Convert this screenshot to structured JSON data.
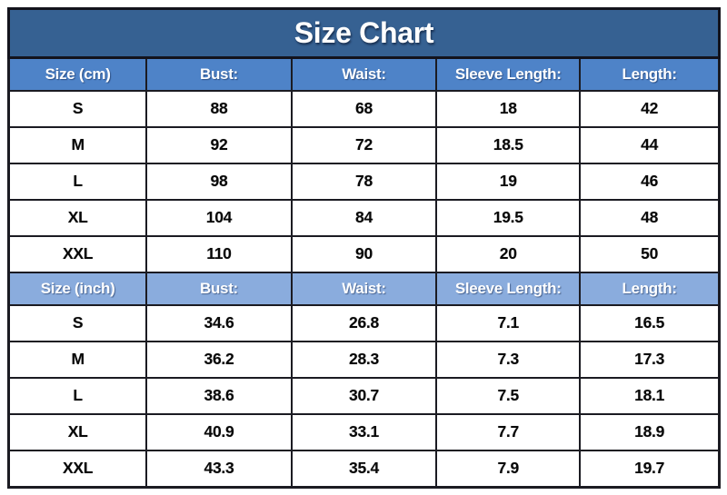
{
  "title": "Size Chart",
  "colors": {
    "title_bg": "#366192",
    "header_cm_bg": "#4E83C8",
    "header_inch_bg": "#8AACDD",
    "border": "#1B1B22",
    "header_text": "#FFFFFF",
    "body_text": "#070707",
    "page_bg": "#FFFFFF"
  },
  "chart_data": {
    "type": "table",
    "title": "Size Chart",
    "layout": "two stacked sections (cm and inch), 5 columns, black grid borders, blue header rows",
    "sections": [
      {
        "unit": "cm",
        "header": [
          "Size (cm)",
          "Bust:",
          "Waist:",
          "Sleeve Length:",
          "Length:"
        ],
        "rows": [
          [
            "S",
            "88",
            "68",
            "18",
            "42"
          ],
          [
            "M",
            "92",
            "72",
            "18.5",
            "44"
          ],
          [
            "L",
            "98",
            "78",
            "19",
            "46"
          ],
          [
            "XL",
            "104",
            "84",
            "19.5",
            "48"
          ],
          [
            "XXL",
            "110",
            "90",
            "20",
            "50"
          ]
        ]
      },
      {
        "unit": "inch",
        "header": [
          "Size (inch)",
          "Bust:",
          "Waist:",
          "Sleeve Length:",
          "Length:"
        ],
        "rows": [
          [
            "S",
            "34.6",
            "26.8",
            "7.1",
            "16.5"
          ],
          [
            "M",
            "36.2",
            "28.3",
            "7.3",
            "17.3"
          ],
          [
            "L",
            "38.6",
            "30.7",
            "7.5",
            "18.1"
          ],
          [
            "XL",
            "40.9",
            "33.1",
            "7.7",
            "18.9"
          ],
          [
            "XXL",
            "43.3",
            "35.4",
            "7.9",
            "19.7"
          ]
        ]
      }
    ]
  }
}
